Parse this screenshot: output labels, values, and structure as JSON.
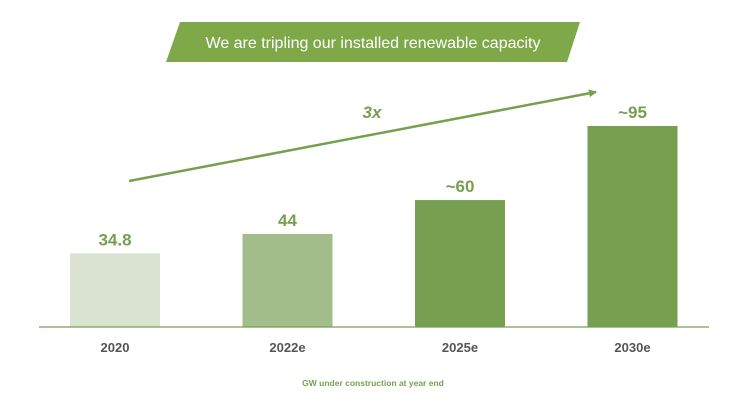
{
  "banner": {
    "title": "We are tripling our installed renewable capacity"
  },
  "chart_data": {
    "type": "bar",
    "title": "We are tripling our installed renewable capacity",
    "categories": [
      "2020",
      "2022e",
      "2025e",
      "2030e"
    ],
    "values": [
      34.8,
      44,
      60,
      95
    ],
    "value_labels": [
      "34.8",
      "44",
      "~60",
      "~95"
    ],
    "bar_colors": [
      "#d9e3cf",
      "#a2bd89",
      "#76a050",
      "#76a050"
    ],
    "ylim": [
      0,
      95
    ],
    "xlabel": "",
    "ylabel": "",
    "grid": false,
    "legend": "none",
    "annotation": "3x",
    "caption": "GW under construction at year end"
  },
  "colors": {
    "accent": "#76a050",
    "banner": "#7fa849",
    "axis": "#76a050",
    "tick_text": "#555555"
  }
}
